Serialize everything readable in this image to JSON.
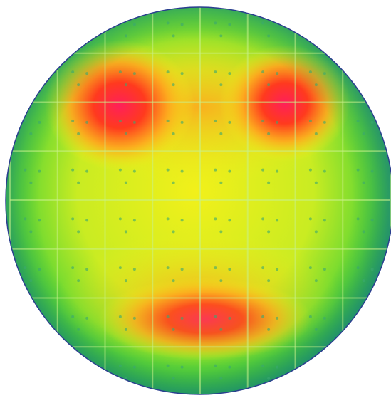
{
  "colors": {
    "background": "#ffffff",
    "wafer_edge": "#2a3f8f",
    "grid_line": "#c8f08a",
    "low": "#0f9b4a",
    "mid_low": "#7fe02a",
    "mid": "#f2f01a",
    "mid_high": "#ffa51e",
    "high": "#ff3a1e",
    "peak": "#ff1f5a"
  },
  "wafer": {
    "shape": "circle",
    "grid_columns": 8,
    "grid_rows": 8,
    "hotspots": [
      {
        "label": "upper-left",
        "intensity": 1.0
      },
      {
        "label": "upper-right",
        "intensity": 0.95
      },
      {
        "label": "lower-center",
        "intensity": 0.8
      }
    ]
  }
}
